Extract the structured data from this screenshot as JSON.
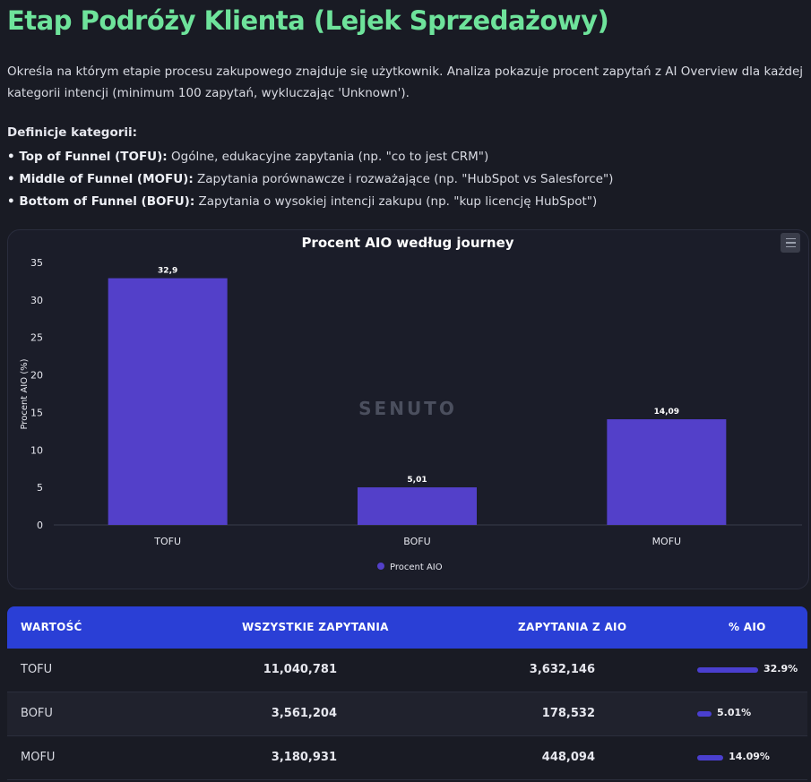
{
  "title": "Etap Podróży Klienta (Lejek Sprzedażowy)",
  "description": "Określa na którym etapie procesu zakupowego znajduje się użytkownik. Analiza pokazuje procent zapytań z AI Overview dla każdej kategorii intencji (minimum 100 zapytań, wykluczając 'Unknown').",
  "definitions": {
    "heading": "Definicje kategorii:",
    "items": [
      {
        "term": "• Top of Funnel (TOFU):",
        "text": " Ogólne, edukacyjne zapytania (np. \"co to jest CRM\")"
      },
      {
        "term": "• Middle of Funnel (MOFU):",
        "text": " Zapytania porównawcze i rozważające (np. \"HubSpot vs Salesforce\")"
      },
      {
        "term": "• Bottom of Funnel (BOFU):",
        "text": " Zapytania o wysokiej intencji zakupu (np. \"kup licencję HubSpot\")"
      }
    ]
  },
  "chart_data": {
    "type": "bar",
    "title": "Procent AIO według journey",
    "categories": [
      "TOFU",
      "BOFU",
      "MOFU"
    ],
    "series": [
      {
        "name": "Procent AIO",
        "values": [
          32.9,
          5.01,
          14.09
        ]
      }
    ],
    "data_labels": [
      "32,9",
      "5,01",
      "14,09"
    ],
    "ylabel": "Procent AIO (%)",
    "xlabel": "",
    "ylim": [
      0,
      35
    ],
    "yticks": [
      0,
      5,
      10,
      15,
      20,
      25,
      30,
      35
    ],
    "legend_position": "bottom",
    "watermark": "SENUTO",
    "bar_color": "#5340c9"
  },
  "table": {
    "headers": [
      "WARTOŚĆ",
      "WSZYSTKIE ZAPYTANIA",
      "ZAPYTANIA Z AIO",
      "% AIO"
    ],
    "rows": [
      {
        "label": "TOFU",
        "all": "11,040,781",
        "aio": "3,632,146",
        "pct": "32.9%",
        "pct_value": 32.9
      },
      {
        "label": "BOFU",
        "all": "3,561,204",
        "aio": "178,532",
        "pct": "5.01%",
        "pct_value": 5.01
      },
      {
        "label": "MOFU",
        "all": "3,180,931",
        "aio": "448,094",
        "pct": "14.09%",
        "pct_value": 14.09
      }
    ]
  },
  "colors": {
    "accent_green": "#6ee39b",
    "header_blue": "#2a3fd6",
    "bar_purple": "#5340c9"
  },
  "icons": {
    "chart_menu": "hamburger-menu-icon"
  }
}
